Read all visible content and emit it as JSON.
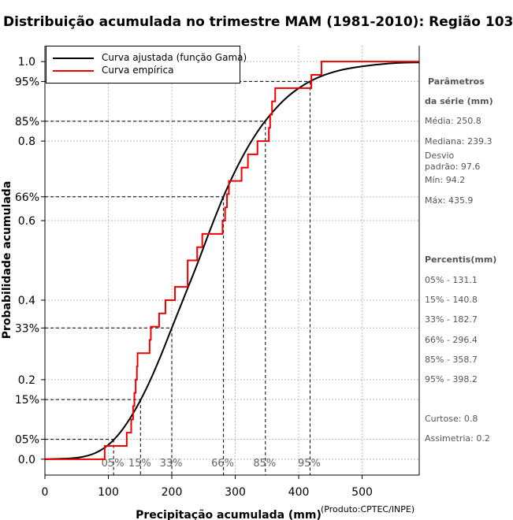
{
  "chart_data": {
    "type": "line",
    "title": "Distribuição acumulada no trimestre MAM (1981-2010): Região 103",
    "xlabel": "Precipitação acumulada (mm)",
    "ylabel": "Probabilidade acumulada",
    "xlim": [
      0,
      590
    ],
    "ylim": [
      -0.04,
      1.04
    ],
    "x_ticks": [
      "0",
      "100",
      "200",
      "300",
      "400",
      "500"
    ],
    "x_tick_values": [
      0,
      100,
      200,
      300,
      400,
      500
    ],
    "y_ticks": [
      "0.0",
      "0.2",
      "0.4",
      "0.6",
      "0.8",
      "1.0"
    ],
    "y_tick_values": [
      0,
      0.2,
      0.4,
      0.6,
      0.8,
      1.0
    ],
    "prob_ticks": [
      "05%",
      "15%",
      "33%",
      "66%",
      "85%",
      "95%"
    ],
    "prob_tick_values": [
      0.05,
      0.15,
      0.33,
      0.66,
      0.85,
      0.95
    ],
    "legend": [
      "Curva ajustada (função Gama)",
      "Curva empírica"
    ],
    "colors": {
      "fitted": "#000000",
      "empirical": "#ee0000",
      "grid": "#bbbbbb"
    },
    "series": [
      {
        "name": "Curva ajustada (função Gama)",
        "x": [
          0,
          40,
          60,
          80,
          100,
          120,
          140,
          160,
          180,
          200,
          220,
          240,
          260,
          280,
          300,
          320,
          340,
          360,
          380,
          400,
          420,
          440,
          460,
          480,
          500,
          520,
          540,
          560,
          590
        ],
        "y": [
          0,
          0.002,
          0.006,
          0.016,
          0.036,
          0.07,
          0.118,
          0.178,
          0.25,
          0.33,
          0.41,
          0.49,
          0.575,
          0.655,
          0.725,
          0.785,
          0.835,
          0.875,
          0.908,
          0.933,
          0.952,
          0.966,
          0.976,
          0.983,
          0.988,
          0.992,
          0.995,
          0.997,
          0.998
        ]
      },
      {
        "name": "Curva empírica",
        "x": [
          0,
          94.2,
          129,
          136,
          139,
          141,
          143,
          145,
          146,
          150,
          165,
          167,
          180,
          185,
          190,
          205,
          215,
          225,
          240,
          248,
          265,
          280,
          284,
          287,
          290,
          299,
          310,
          320,
          335,
          353,
          355,
          358,
          363,
          378,
          420,
          435.9,
          590
        ],
        "y": [
          0,
          0.0333,
          0.0667,
          0.1,
          0.1333,
          0.1667,
          0.2,
          0.2333,
          0.2667,
          0.2667,
          0.3,
          0.3333,
          0.3667,
          0.3667,
          0.4,
          0.4333,
          0.4333,
          0.5,
          0.5333,
          0.5667,
          0.5667,
          0.6,
          0.6333,
          0.6667,
          0.7,
          0.7,
          0.7333,
          0.7667,
          0.8,
          0.8333,
          0.8667,
          0.9,
          0.9333,
          0.9333,
          0.9667,
          1.0,
          1.0
        ]
      }
    ],
    "percentile_markers": [
      {
        "label": "05%",
        "prob": 0.05,
        "value": 131.1
      },
      {
        "label": "15%",
        "prob": 0.15,
        "value": 140.8
      },
      {
        "label": "33%",
        "prob": 0.33,
        "value": 182.7
      },
      {
        "label": "66%",
        "prob": 0.66,
        "value": 296.4
      },
      {
        "label": "85%",
        "prob": 0.85,
        "value": 358.7
      },
      {
        "label": "95%",
        "prob": 0.95,
        "value": 398.2
      }
    ]
  },
  "side_panel": {
    "params_title_1": "Parâmetros",
    "params_title_2": "da série (mm)",
    "media": "Média: 250.8",
    "mediana": "Mediana: 239.3",
    "desvio_1": "Desvio",
    "desvio_2": "padrão: 97.6",
    "min": "Mín: 94.2",
    "max": "Máx: 435.9",
    "percentis_title": "Percentis(mm)",
    "percentis": [
      "05% - 131.1",
      "15% - 140.8",
      "33% - 182.7",
      "66% - 296.4",
      "85% - 358.7",
      "95% - 398.2"
    ],
    "curtose": "Curtose: 0.8",
    "assimetria": "Assimetria: 0.2"
  },
  "credit": "(Produto:CPTEC/INPE)"
}
